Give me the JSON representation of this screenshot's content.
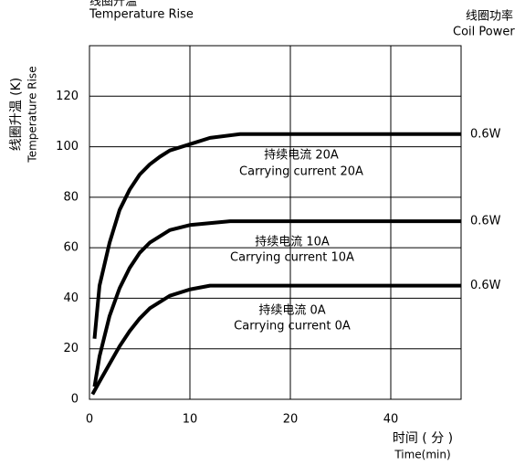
{
  "chart_data": {
    "type": "line",
    "title_cn": "线圈升温",
    "title": "Temperature Rise",
    "power_title_cn": "线圈功率",
    "power_title": "Coil Power",
    "y_label_cn": "线圈升温 (K)",
    "y_label": "Temperature Rise",
    "x_label_cn": "时间 ( 分 )",
    "x_label": "Time(min)",
    "xlim": [
      0,
      54
    ],
    "xticks": [
      0,
      10,
      20,
      40
    ],
    "ylim": [
      0,
      140
    ],
    "yticks": [
      0,
      20,
      40,
      60,
      80,
      100,
      120
    ],
    "grid": true,
    "series": [
      {
        "name": "持续电流 20A",
        "name_en": "Carrying current 20A",
        "power": "0.6W",
        "color": "#000000",
        "x": [
          0.5,
          1,
          2,
          3,
          4,
          5,
          6,
          7,
          8,
          10,
          12,
          15,
          54
        ],
        "values": [
          24,
          45,
          62,
          75,
          83,
          89,
          93,
          96,
          98.5,
          101,
          103.5,
          105,
          105
        ]
      },
      {
        "name": "持续电流 10A",
        "name_en": "Carrying current 10A",
        "power": "0.6W",
        "color": "#000000",
        "x": [
          0.5,
          1,
          2,
          3,
          4,
          5,
          6,
          8,
          10,
          14,
          20,
          54
        ],
        "values": [
          5,
          17,
          33,
          44,
          52,
          58,
          62,
          67,
          69,
          70.5,
          70.5,
          70.5
        ]
      },
      {
        "name": "持续电流 0A",
        "name_en": "Carrying current 0A",
        "power": "0.6W",
        "color": "#000000",
        "x": [
          0.3,
          1,
          2,
          3,
          4,
          5,
          6,
          8,
          10,
          12,
          54
        ],
        "values": [
          2,
          7,
          14,
          21,
          27,
          32,
          36,
          41,
          43.5,
          45,
          45
        ]
      }
    ]
  }
}
